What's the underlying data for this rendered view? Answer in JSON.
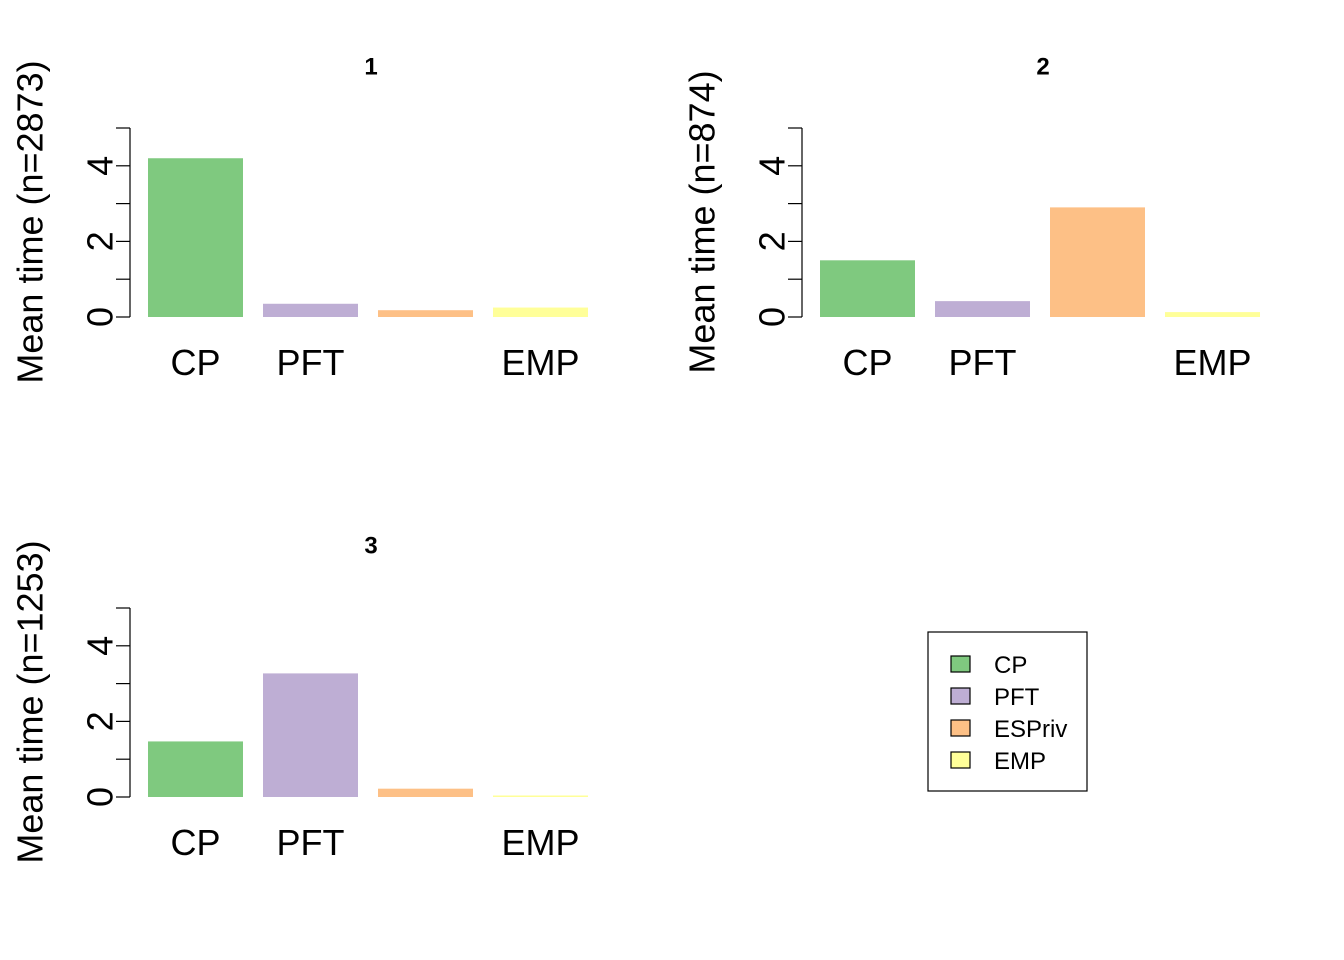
{
  "colors": {
    "CP": "#7FC97F",
    "PFT": "#BEAED4",
    "ESPriv": "#FDC086",
    "EMP": "#FFFF99"
  },
  "chart_data": [
    {
      "type": "bar",
      "title": "1",
      "ylabel": "Mean time (n=2873)",
      "categories": [
        "CP",
        "PFT",
        "ESPriv",
        "EMP"
      ],
      "tick_labels": [
        "CP",
        "PFT",
        "",
        "EMP"
      ],
      "values": [
        4.2,
        0.35,
        0.18,
        0.25
      ],
      "ylim": [
        0,
        5
      ],
      "yticks": [
        0,
        2,
        4
      ],
      "yticks_minor": [
        0,
        1,
        2,
        3,
        4,
        5
      ]
    },
    {
      "type": "bar",
      "title": "2",
      "ylabel": "Mean time (n=874)",
      "categories": [
        "CP",
        "PFT",
        "ESPriv",
        "EMP"
      ],
      "tick_labels": [
        "CP",
        "PFT",
        "",
        "EMP"
      ],
      "values": [
        1.5,
        0.42,
        2.9,
        0.13
      ],
      "ylim": [
        0,
        5
      ],
      "yticks": [
        0,
        2,
        4
      ],
      "yticks_minor": [
        0,
        1,
        2,
        3,
        4,
        5
      ]
    },
    {
      "type": "bar",
      "title": "3",
      "ylabel": "Mean time (n=1253)",
      "categories": [
        "CP",
        "PFT",
        "ESPriv",
        "EMP"
      ],
      "tick_labels": [
        "CP",
        "PFT",
        "",
        "EMP"
      ],
      "values": [
        1.47,
        3.27,
        0.22,
        0.04
      ],
      "ylim": [
        0,
        5
      ],
      "yticks": [
        0,
        2,
        4
      ],
      "yticks_minor": [
        0,
        1,
        2,
        3,
        4,
        5
      ]
    }
  ],
  "legend": {
    "position": "bottom-right",
    "items": [
      {
        "label": "CP",
        "color": "#7FC97F"
      },
      {
        "label": "PFT",
        "color": "#BEAED4"
      },
      {
        "label": "ESPriv",
        "color": "#FDC086"
      },
      {
        "label": "EMP",
        "color": "#FFFF99"
      }
    ]
  }
}
